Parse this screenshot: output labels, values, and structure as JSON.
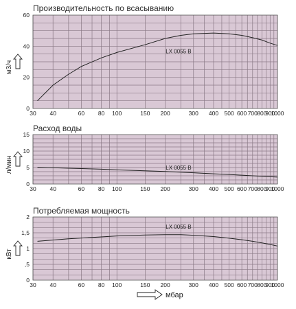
{
  "chart_data": [
    {
      "type": "line",
      "title": "Производительность по всасыванию",
      "ylabel": "м3/ч",
      "xscale": "log",
      "xlim": [
        30,
        1000
      ],
      "ylim": [
        0,
        60
      ],
      "grid": true,
      "x_ticks": [
        30,
        40,
        60,
        80,
        100,
        150,
        200,
        300,
        400,
        500,
        600,
        700,
        800,
        900,
        1000
      ],
      "y_ticks": [
        0,
        20,
        40,
        60
      ],
      "series": [
        {
          "name": "LX 0055 B",
          "x": [
            32,
            40,
            50,
            60,
            80,
            100,
            150,
            200,
            250,
            300,
            400,
            500,
            600,
            700,
            800,
            900,
            1000
          ],
          "y": [
            5,
            15,
            22,
            27,
            32.5,
            36,
            41,
            45,
            47,
            48,
            48.5,
            48,
            47,
            45.5,
            44,
            42,
            40.5
          ]
        }
      ]
    },
    {
      "type": "line",
      "title": "Расход воды",
      "ylabel": "л/мин",
      "xscale": "log",
      "xlim": [
        30,
        1000
      ],
      "ylim": [
        0,
        15
      ],
      "grid": true,
      "x_ticks": [
        30,
        40,
        60,
        80,
        100,
        150,
        200,
        300,
        400,
        500,
        600,
        700,
        800,
        900,
        1000
      ],
      "y_ticks": [
        0,
        5,
        10,
        15
      ],
      "series": [
        {
          "name": "LX 0055 B",
          "x": [
            32,
            50,
            80,
            100,
            150,
            200,
            300,
            400,
            500,
            700,
            1000
          ],
          "y": [
            5.1,
            4.8,
            4.5,
            4.3,
            4.0,
            3.8,
            3.4,
            3.1,
            2.9,
            2.5,
            2.1
          ]
        }
      ]
    },
    {
      "type": "line",
      "title": "Потребляемая мощность",
      "ylabel": "кВт",
      "xlabel": "мбар",
      "xscale": "log",
      "xlim": [
        30,
        1000
      ],
      "ylim": [
        0,
        2
      ],
      "grid": true,
      "x_ticks": [
        30,
        40,
        60,
        80,
        100,
        150,
        200,
        300,
        400,
        500,
        600,
        700,
        800,
        900,
        1000
      ],
      "y_ticks": [
        0,
        0.5,
        1,
        1.5,
        2
      ],
      "y_tick_labels": [
        "0",
        ",5",
        "1",
        "1,5",
        "2"
      ],
      "series": [
        {
          "name": "LX 0055 B",
          "x": [
            32,
            50,
            80,
            100,
            150,
            200,
            250,
            300,
            400,
            500,
            600,
            700,
            800,
            900,
            1000
          ],
          "y": [
            1.23,
            1.31,
            1.37,
            1.4,
            1.43,
            1.44,
            1.44,
            1.42,
            1.38,
            1.33,
            1.28,
            1.23,
            1.18,
            1.13,
            1.08
          ]
        }
      ]
    }
  ]
}
